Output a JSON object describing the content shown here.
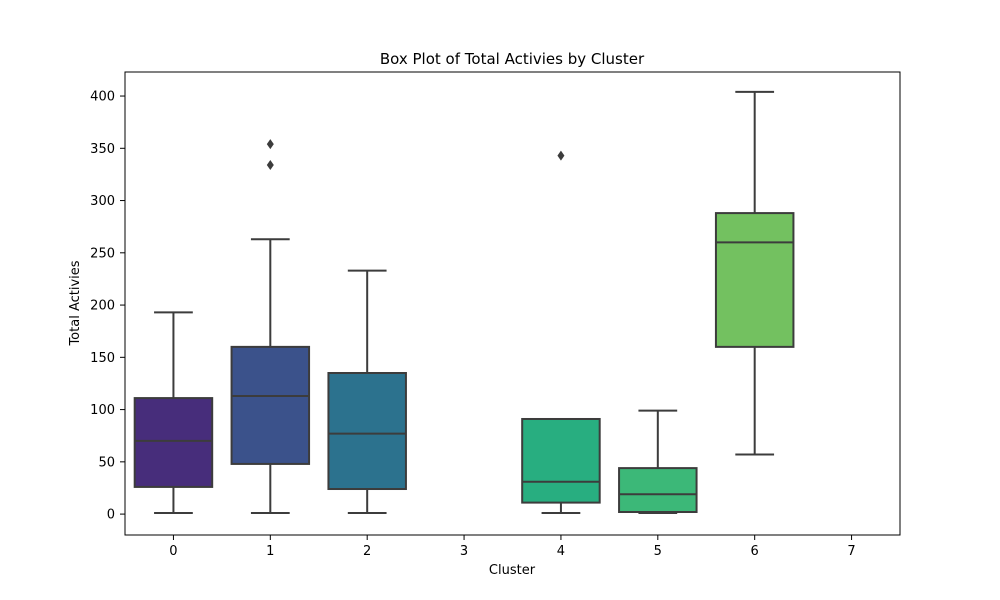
{
  "chart_data": {
    "type": "box",
    "title": "Box Plot of Total Activies by Cluster",
    "xlabel": "Cluster",
    "ylabel": "Total Activies",
    "categories": [
      "0",
      "1",
      "2",
      "3",
      "4",
      "5",
      "6",
      "7"
    ],
    "ylim": [
      -20,
      423
    ],
    "yticks": [
      0,
      50,
      100,
      150,
      200,
      250,
      300,
      350,
      400
    ],
    "grid": false,
    "boxes": [
      {
        "category": "0",
        "whisker_low": 1,
        "q1": 26,
        "median": 70,
        "q3": 111,
        "whisker_high": 193,
        "outliers": [],
        "color": "#472d7b"
      },
      {
        "category": "1",
        "whisker_low": 1,
        "q1": 48,
        "median": 113,
        "q3": 160,
        "whisker_high": 263,
        "outliers": [
          334,
          354
        ],
        "color": "#3b528b"
      },
      {
        "category": "2",
        "whisker_low": 1,
        "q1": 24,
        "median": 77,
        "q3": 135,
        "whisker_high": 233,
        "outliers": [],
        "color": "#2c728e"
      },
      {
        "category": "3",
        "empty": true,
        "color": "#21918c"
      },
      {
        "category": "4",
        "whisker_low": 1,
        "q1": 11,
        "median": 31,
        "q3": 91,
        "whisker_high": 91,
        "outliers": [
          343
        ],
        "color": "#28ae80"
      },
      {
        "category": "5",
        "whisker_low": 1,
        "q1": 2,
        "median": 19,
        "q3": 44,
        "whisker_high": 99,
        "outliers": [],
        "color": "#3cb878"
      },
      {
        "category": "6",
        "whisker_low": 57,
        "q1": 160,
        "median": 260,
        "q3": 288,
        "whisker_high": 404,
        "outliers": [],
        "color": "#73c160"
      },
      {
        "category": "7",
        "empty": true,
        "color": "#addc30"
      }
    ]
  }
}
